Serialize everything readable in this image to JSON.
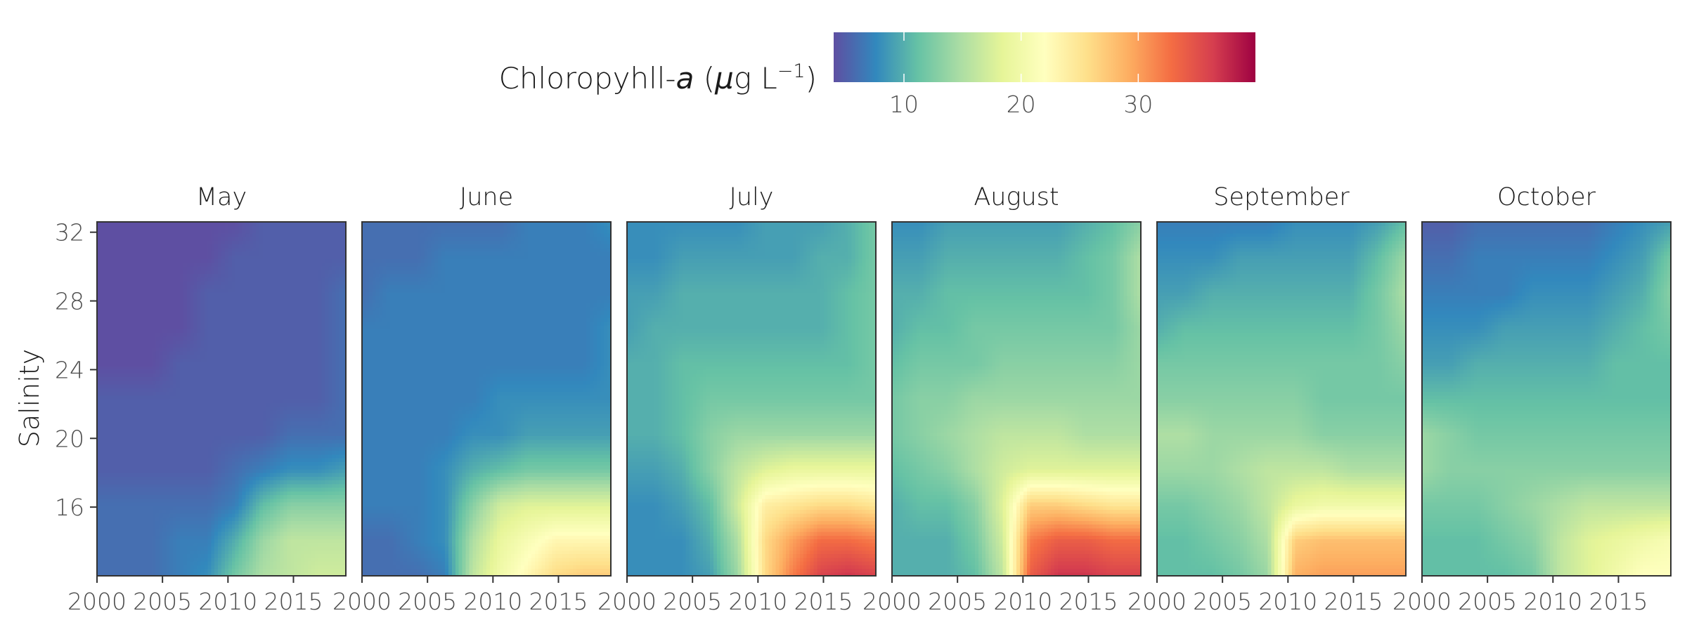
{
  "chart_data": {
    "type": "heatmap",
    "legend": {
      "title_prefix": "Chloropyhll-",
      "title_var": "a",
      "title_units_open": " (",
      "title_mu": "μ",
      "title_units_mid": "g L",
      "title_exponent": "−1",
      "title_units_close": ")",
      "placement": "top",
      "range": [
        4,
        40
      ],
      "ticks": [
        "10",
        "20",
        "30"
      ],
      "tick_values": [
        10,
        20,
        30
      ]
    },
    "colorscale": [
      "#5e4fa2",
      "#3288bd",
      "#66c2a5",
      "#abdda4",
      "#e6f598",
      "#ffffbf",
      "#fee08b",
      "#fdae61",
      "#f46d43",
      "#d53e4f",
      "#9e0142"
    ],
    "ylabel": "Salinity",
    "xlabel": "",
    "x_range": [
      2000,
      2019
    ],
    "y_range": [
      12,
      32.6
    ],
    "x_ticks": [
      "2000",
      "2005",
      "2010",
      "2015"
    ],
    "y_ticks": [
      "16",
      "20",
      "24",
      "28",
      "32"
    ],
    "x_grid": [
      2000,
      2002,
      2004,
      2006,
      2008,
      2010,
      2012,
      2014,
      2016,
      2018
    ],
    "y_grid": [
      12,
      14,
      16,
      18,
      20,
      22,
      24,
      26,
      28,
      30,
      32
    ],
    "panels": [
      {
        "month": "May",
        "values": [
          [
            6,
            6,
            6,
            7,
            8,
            12,
            15,
            16,
            17,
            17
          ],
          [
            6,
            6,
            6,
            7,
            7,
            10,
            14,
            16,
            16,
            16
          ],
          [
            6,
            6,
            6,
            6,
            6,
            7,
            11,
            13,
            13,
            13
          ],
          [
            5,
            5,
            5,
            5,
            5,
            6,
            7,
            8,
            8,
            9
          ],
          [
            5,
            5,
            5,
            5,
            5,
            5,
            5,
            6,
            6,
            6
          ],
          [
            5,
            5,
            5,
            5,
            5,
            5,
            5,
            5,
            5,
            6
          ],
          [
            4,
            4,
            4,
            5,
            5,
            5,
            5,
            5,
            5,
            6
          ],
          [
            4,
            4,
            4,
            4,
            5,
            5,
            5,
            5,
            5,
            6
          ],
          [
            4,
            4,
            4,
            4,
            5,
            5,
            5,
            5,
            5,
            6
          ],
          [
            4,
            4,
            4,
            4,
            4,
            5,
            5,
            5,
            5,
            5
          ],
          [
            4,
            4,
            4,
            4,
            4,
            4,
            5,
            5,
            5,
            5
          ]
        ]
      },
      {
        "month": "June",
        "values": [
          [
            6,
            6,
            6,
            7,
            16,
            20,
            23,
            26,
            27,
            27
          ],
          [
            6,
            6,
            7,
            8,
            15,
            19,
            21,
            23,
            23,
            23
          ],
          [
            7,
            7,
            7,
            8,
            13,
            17,
            18,
            18,
            18,
            18
          ],
          [
            7,
            7,
            7,
            8,
            10,
            11,
            12,
            12,
            12,
            12
          ],
          [
            7,
            7,
            7,
            7,
            8,
            8,
            9,
            9,
            9,
            9
          ],
          [
            7,
            7,
            7,
            7,
            7,
            8,
            8,
            8,
            8,
            8
          ],
          [
            7,
            7,
            7,
            7,
            7,
            7,
            7,
            7,
            7,
            8
          ],
          [
            7,
            7,
            7,
            7,
            7,
            7,
            7,
            7,
            7,
            8
          ],
          [
            6,
            7,
            7,
            7,
            7,
            7,
            7,
            7,
            7,
            7
          ],
          [
            6,
            6,
            6,
            7,
            7,
            7,
            7,
            7,
            7,
            7
          ],
          [
            6,
            6,
            6,
            6,
            6,
            6,
            7,
            7,
            7,
            8
          ]
        ]
      },
      {
        "month": "July",
        "values": [
          [
            8,
            8,
            8,
            9,
            14,
            26,
            32,
            36,
            37,
            36
          ],
          [
            8,
            8,
            8,
            10,
            15,
            26,
            30,
            33,
            33,
            32
          ],
          [
            8,
            8,
            9,
            11,
            17,
            24,
            25,
            26,
            26,
            25
          ],
          [
            9,
            9,
            10,
            13,
            16,
            18,
            19,
            19,
            19,
            19
          ],
          [
            10,
            10,
            11,
            13,
            14,
            14,
            14,
            14,
            14,
            14
          ],
          [
            10,
            10,
            11,
            12,
            12,
            12,
            12,
            12,
            12,
            12
          ],
          [
            10,
            10,
            11,
            11,
            11,
            11,
            11,
            11,
            11,
            12
          ],
          [
            9,
            10,
            10,
            10,
            10,
            10,
            10,
            10,
            11,
            12
          ],
          [
            9,
            9,
            10,
            10,
            10,
            10,
            10,
            10,
            11,
            12
          ],
          [
            8,
            8,
            9,
            9,
            9,
            9,
            9,
            10,
            10,
            12
          ],
          [
            8,
            8,
            8,
            8,
            8,
            9,
            9,
            9,
            10,
            12
          ]
        ]
      },
      {
        "month": "August",
        "values": [
          [
            10,
            10,
            10,
            11,
            16,
            34,
            37,
            37,
            36,
            36
          ],
          [
            10,
            10,
            10,
            12,
            17,
            32,
            34,
            34,
            33,
            33
          ],
          [
            10,
            11,
            11,
            13,
            18,
            27,
            27,
            26,
            25,
            25
          ],
          [
            11,
            12,
            13,
            15,
            17,
            18,
            18,
            18,
            18,
            18
          ],
          [
            12,
            13,
            14,
            15,
            16,
            16,
            16,
            15,
            15,
            15
          ],
          [
            12,
            13,
            13,
            14,
            14,
            14,
            14,
            14,
            14,
            14
          ],
          [
            11,
            12,
            12,
            12,
            13,
            13,
            13,
            13,
            13,
            14
          ],
          [
            10,
            11,
            11,
            12,
            12,
            12,
            12,
            12,
            12,
            14
          ],
          [
            10,
            10,
            11,
            11,
            11,
            11,
            11,
            11,
            12,
            15
          ],
          [
            9,
            9,
            10,
            10,
            10,
            10,
            10,
            11,
            12,
            15
          ],
          [
            8,
            8,
            9,
            9,
            9,
            9,
            9,
            10,
            11,
            13
          ]
        ]
      },
      {
        "month": "September",
        "values": [
          [
            11,
            11,
            11,
            12,
            14,
            29,
            30,
            30,
            30,
            30
          ],
          [
            11,
            11,
            12,
            13,
            15,
            27,
            28,
            28,
            28,
            28
          ],
          [
            12,
            12,
            13,
            14,
            16,
            19,
            20,
            20,
            20,
            20
          ],
          [
            14,
            14,
            14,
            15,
            16,
            16,
            16,
            15,
            15,
            15
          ],
          [
            15,
            15,
            14,
            14,
            14,
            14,
            13,
            13,
            13,
            13
          ],
          [
            13,
            13,
            13,
            13,
            13,
            13,
            12,
            12,
            12,
            12
          ],
          [
            12,
            12,
            12,
            12,
            12,
            12,
            12,
            12,
            12,
            13
          ],
          [
            10,
            11,
            11,
            11,
            11,
            11,
            11,
            11,
            12,
            14
          ],
          [
            9,
            9,
            10,
            10,
            10,
            10,
            10,
            10,
            12,
            15
          ],
          [
            8,
            8,
            8,
            9,
            9,
            9,
            9,
            9,
            11,
            14
          ],
          [
            7,
            7,
            7,
            7,
            7,
            8,
            8,
            8,
            9,
            11
          ]
        ]
      },
      {
        "month": "October",
        "values": [
          [
            11,
            11,
            11,
            11,
            12,
            16,
            18,
            20,
            22,
            22
          ],
          [
            11,
            11,
            11,
            12,
            13,
            16,
            18,
            19,
            20,
            21
          ],
          [
            12,
            12,
            12,
            13,
            14,
            15,
            16,
            16,
            16,
            16
          ],
          [
            14,
            13,
            13,
            13,
            13,
            13,
            13,
            13,
            13,
            13
          ],
          [
            14,
            13,
            12,
            12,
            12,
            12,
            12,
            12,
            12,
            12
          ],
          [
            11,
            11,
            11,
            11,
            11,
            11,
            11,
            11,
            11,
            11
          ],
          [
            9,
            9,
            10,
            10,
            10,
            10,
            10,
            11,
            11,
            11
          ],
          [
            8,
            8,
            8,
            9,
            9,
            9,
            9,
            10,
            11,
            12
          ],
          [
            7,
            7,
            7,
            7,
            8,
            8,
            8,
            9,
            10,
            13
          ],
          [
            6,
            6,
            7,
            7,
            7,
            7,
            7,
            8,
            9,
            12
          ],
          [
            5,
            5,
            6,
            6,
            6,
            6,
            6,
            7,
            8,
            9
          ]
        ]
      }
    ]
  }
}
